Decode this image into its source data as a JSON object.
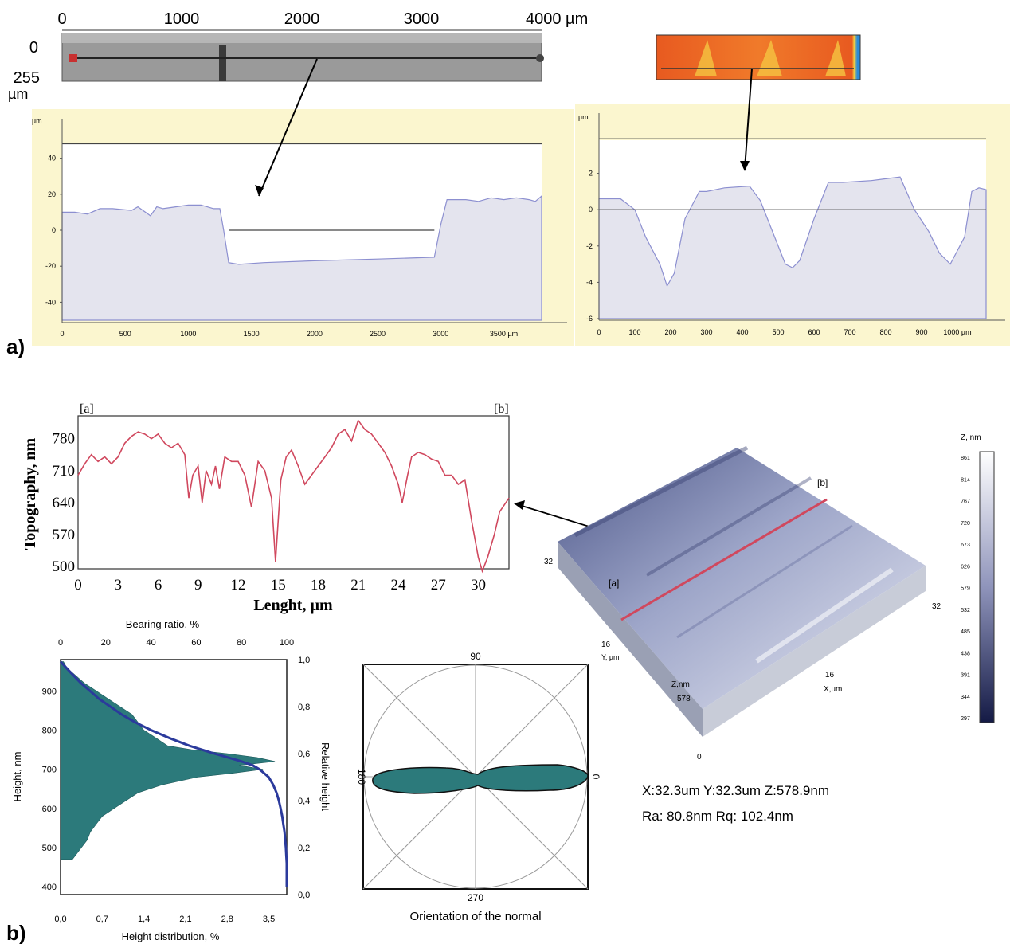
{
  "panel_labels": {
    "a": "a)",
    "b": "b)"
  },
  "scan_a": {
    "ticks": [
      "0",
      "1000",
      "2000",
      "3000",
      "4000 µm"
    ],
    "y_labels": [
      "0",
      "255",
      "µm"
    ]
  },
  "chart_data": [
    {
      "id": "profile_a_left",
      "type": "area",
      "ylabel": "µm",
      "xlim": [
        0,
        3800
      ],
      "ylim": [
        -50,
        50
      ],
      "xticks": [
        "0",
        "500",
        "1000",
        "1500",
        "2000",
        "2500",
        "3000",
        "3500 µm"
      ],
      "xtick_values": [
        0,
        500,
        1000,
        1500,
        2000,
        2500,
        3000,
        3500
      ],
      "yticks": [
        "40",
        "20",
        "0",
        "-20",
        "-40"
      ],
      "ytick_values": [
        40,
        20,
        0,
        -20,
        -40
      ],
      "x": [
        0,
        100,
        200,
        300,
        400,
        550,
        600,
        700,
        750,
        800,
        900,
        1000,
        1100,
        1150,
        1200,
        1250,
        1280,
        1320,
        1400,
        1600,
        2000,
        2500,
        2950,
        3000,
        3050,
        3200,
        3300,
        3400,
        3500,
        3600,
        3700,
        3750,
        3800
      ],
      "y": [
        10,
        10,
        9,
        12,
        12,
        11,
        13,
        8,
        13,
        12,
        13,
        14,
        14,
        13,
        12,
        12,
        0,
        -18,
        -19,
        -18,
        -17,
        -16,
        -15,
        3,
        17,
        17,
        16,
        18,
        17,
        18,
        17,
        16,
        19
      ],
      "reference_lines": [
        {
          "y": 0,
          "x": [
            1320,
            2950
          ]
        },
        {
          "y": 48,
          "x": [
            0,
            3800
          ]
        }
      ]
    },
    {
      "id": "profile_a_right",
      "type": "area",
      "ylabel": "µm",
      "xlim": [
        0,
        1080
      ],
      "ylim": [
        -6,
        4
      ],
      "xticks": [
        "0",
        "100",
        "200",
        "300",
        "400",
        "500",
        "600",
        "700",
        "800",
        "900",
        "1000 µm"
      ],
      "xtick_values": [
        0,
        100,
        200,
        300,
        400,
        500,
        600,
        700,
        800,
        900,
        1000
      ],
      "yticks": [
        "2",
        "0",
        "-2",
        "-4",
        "-6"
      ],
      "ytick_values": [
        2,
        0,
        -2,
        -4,
        -6
      ],
      "x": [
        0,
        60,
        100,
        130,
        170,
        190,
        210,
        240,
        280,
        300,
        350,
        420,
        450,
        480,
        520,
        540,
        560,
        600,
        640,
        680,
        760,
        800,
        840,
        880,
        920,
        950,
        980,
        1020,
        1040,
        1060,
        1080
      ],
      "y": [
        0.6,
        0.6,
        0,
        -1.5,
        -3,
        -4.2,
        -3.5,
        -0.5,
        1,
        1,
        1.2,
        1.3,
        0.5,
        -1,
        -3,
        -3.2,
        -2.8,
        -0.5,
        1.5,
        1.5,
        1.6,
        1.7,
        1.8,
        0,
        -1.2,
        -2.4,
        -3,
        -1.5,
        1,
        1.2,
        1.1
      ],
      "reference_lines": [
        {
          "y": 0,
          "x": [
            0,
            1080
          ]
        },
        {
          "y": 3.9,
          "x": [
            0,
            1080
          ]
        }
      ]
    },
    {
      "id": "topography_b",
      "type": "line",
      "xlabel": "Lenght, µm",
      "ylabel": "Topography, nm",
      "corner_labels": [
        "[a]",
        "[b]"
      ],
      "xlim": [
        0,
        32.3
      ],
      "ylim": [
        495,
        830
      ],
      "xticks": [
        "0",
        "3",
        "6",
        "9",
        "12",
        "15",
        "18",
        "21",
        "24",
        "27",
        "30"
      ],
      "xtick_values": [
        0,
        3,
        6,
        9,
        12,
        15,
        18,
        21,
        24,
        27,
        30
      ],
      "yticks": [
        "780",
        "710",
        "640",
        "570",
        "500"
      ],
      "ytick_values": [
        780,
        710,
        640,
        570,
        500
      ],
      "series": [
        {
          "color": "#d0485e",
          "x": [
            0,
            0.5,
            1,
            1.5,
            2,
            2.5,
            3,
            3.5,
            4,
            4.5,
            5,
            5.5,
            6,
            6.5,
            7,
            7.5,
            8,
            8.3,
            8.6,
            9,
            9.3,
            9.6,
            10,
            10.3,
            10.6,
            11,
            11.5,
            12,
            12.5,
            13,
            13.5,
            14,
            14.5,
            14.8,
            15.2,
            15.6,
            16,
            16.5,
            17,
            17.5,
            18,
            18.5,
            19,
            19.5,
            20,
            20.5,
            21,
            21.5,
            22,
            22.5,
            23,
            23.5,
            24,
            24.3,
            24.7,
            25,
            25.5,
            26,
            26.5,
            27,
            27.5,
            28,
            28.5,
            29,
            29.5,
            30,
            30.3,
            30.7,
            31.2,
            31.6,
            32.3
          ],
          "y": [
            700,
            725,
            745,
            730,
            740,
            725,
            740,
            770,
            785,
            795,
            790,
            780,
            790,
            770,
            760,
            770,
            745,
            650,
            700,
            720,
            640,
            710,
            680,
            720,
            670,
            740,
            730,
            730,
            700,
            630,
            730,
            710,
            650,
            510,
            690,
            740,
            755,
            720,
            680,
            700,
            720,
            740,
            760,
            790,
            800,
            775,
            820,
            800,
            790,
            770,
            750,
            720,
            680,
            640,
            700,
            740,
            750,
            745,
            735,
            730,
            700,
            700,
            680,
            690,
            600,
            520,
            490,
            520,
            570,
            620,
            650
          ]
        }
      ]
    },
    {
      "id": "height_distribution_b",
      "type": "area",
      "xlabel": "Height distribution, %",
      "ylabel": "Height, nm",
      "top_label": "Bearing ratio, %",
      "right_label": "Relative height",
      "xlim": [
        0,
        3.8
      ],
      "ylim": [
        380,
        980
      ],
      "xticks": [
        "0,0",
        "0,7",
        "1,4",
        "2,1",
        "2,8",
        "3,5"
      ],
      "xtick_values": [
        0,
        0.7,
        1.4,
        2.1,
        2.8,
        3.5
      ],
      "yticks": [
        "900",
        "800",
        "700",
        "600",
        "500",
        "400"
      ],
      "ytick_values": [
        900,
        800,
        700,
        600,
        500,
        400
      ],
      "top_ticks": [
        "0",
        "20",
        "40",
        "60",
        "80",
        "100"
      ],
      "top_tick_values": [
        0,
        20,
        40,
        60,
        80,
        100
      ],
      "right_ticks": [
        "1,0",
        "0,8",
        "0,6",
        "0,4",
        "0,2",
        "0,0"
      ],
      "right_tick_values": [
        1,
        0.8,
        0.6,
        0.4,
        0.2,
        0
      ],
      "series": [
        {
          "name": "Height distribution",
          "color": "#2c7a7b",
          "height": [
            470,
            500,
            520,
            540,
            560,
            580,
            600,
            620,
            640,
            660,
            680,
            690,
            700,
            710,
            720,
            730,
            740,
            750,
            760,
            780,
            800,
            820,
            840,
            860,
            880,
            900,
            920,
            940,
            960,
            975
          ],
          "percent": [
            0.2,
            0.35,
            0.45,
            0.5,
            0.6,
            0.7,
            0.9,
            1.1,
            1.3,
            1.7,
            2.3,
            2.9,
            3.4,
            3.0,
            3.6,
            3.3,
            2.8,
            2.2,
            1.8,
            1.6,
            1.4,
            1.3,
            1.2,
            1.0,
            0.8,
            0.6,
            0.4,
            0.25,
            0.1,
            0.05
          ]
        },
        {
          "name": "Bearing ratio",
          "color": "#2b3a9c",
          "height": [
            975,
            950,
            920,
            900,
            880,
            860,
            840,
            820,
            800,
            780,
            760,
            740,
            720,
            710,
            700,
            690,
            680,
            660,
            640,
            620,
            600,
            580,
            560,
            540,
            520,
            500,
            480,
            460,
            440,
            420,
            400
          ],
          "percent": [
            0,
            4,
            9,
            13,
            17,
            22,
            27,
            33,
            40,
            48,
            57,
            68,
            80,
            85,
            88,
            90,
            92,
            94,
            95.5,
            96.5,
            97.3,
            98,
            98.5,
            99,
            99.3,
            99.6,
            99.8,
            100,
            100,
            100,
            100
          ]
        }
      ]
    },
    {
      "id": "orientation_polar_b",
      "type": "polar",
      "xlabel": "Orientation of the normal",
      "angle_labels": [
        "90",
        "180",
        "270",
        "0"
      ]
    }
  ],
  "surface_3d": {
    "labels": {
      "b": "[b]",
      "a": "[a]",
      "y32": "32",
      "x32": "32",
      "y16": "16",
      "y_axis": "Y, µm",
      "x16": "16",
      "x_axis": "X,um",
      "z_axis": "Z,nm",
      "z_val": "578",
      "zero": "0"
    },
    "stats_line1": "X:32.3um  Y:32.3um  Z:578.9nm",
    "stats_line2": "Ra: 80.8nm  Rq: 102.4nm"
  },
  "colorbar": {
    "title": "Z, nm",
    "ticks": [
      "861",
      "814",
      "767",
      "720",
      "673",
      "626",
      "579",
      "532",
      "485",
      "438",
      "391",
      "344",
      "297"
    ]
  }
}
